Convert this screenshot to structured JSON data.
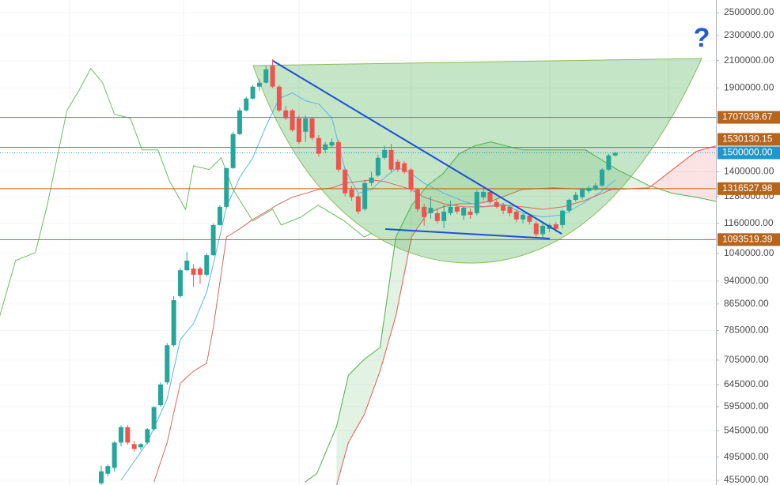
{
  "chart_data": {
    "type": "candlestick",
    "annotation": "?",
    "log_scale": true,
    "grid": true,
    "ylim": [
      455000,
      2500000
    ],
    "yticks": [
      {
        "value": 455000,
        "label": "455000.00"
      },
      {
        "value": 495000,
        "label": "495000.00"
      },
      {
        "value": 545000,
        "label": "545000.00"
      },
      {
        "value": 595000,
        "label": "595000.00"
      },
      {
        "value": 645000,
        "label": "645000.00"
      },
      {
        "value": 705000,
        "label": "705000.00"
      },
      {
        "value": 785000,
        "label": "785000.00"
      },
      {
        "value": 865000,
        "label": "865000.00"
      },
      {
        "value": 940000,
        "label": "940000.00"
      },
      {
        "value": 1040000,
        "label": "1040000.00"
      },
      {
        "value": 1160000,
        "label": "1160000.00"
      },
      {
        "value": 1280000,
        "label": "1280000.00"
      },
      {
        "value": 1400000,
        "label": "1400000.00"
      },
      {
        "value": 1900000,
        "label": "1900000.00"
      },
      {
        "value": 2100000,
        "label": "2100000.00"
      },
      {
        "value": 2300000,
        "label": "2300000.00"
      },
      {
        "value": 2500000,
        "label": "2500000.00"
      }
    ],
    "up_color": "#26a69a",
    "down_color": "#ef5350",
    "ohlc": {
      "open": [
        450000,
        466000,
        476000,
        522000,
        552000,
        519000,
        513000,
        522000,
        548000,
        598000,
        650000,
        744000,
        890000,
        978000,
        984000,
        984000,
        962000,
        1033000,
        1153000,
        1232000,
        1419000,
        1606000,
        1751000,
        1828000,
        1909000,
        1937000,
        2060000,
        1909000,
        1751000,
        1751000,
        1701000,
        1620000,
        1701000,
        1583000,
        1516000,
        1540000,
        1560000,
        1411000,
        1313000,
        1280000,
        1222000,
        1344000,
        1381000,
        1473000,
        1516000,
        1452000,
        1444000,
        1411000,
        1313000,
        1232000,
        1204000,
        1204000,
        1170000,
        1204000,
        1232000,
        1194000,
        1211000,
        1204000,
        1276000,
        1301000,
        1254000,
        1239000,
        1232000,
        1211000,
        1177000,
        1194000,
        1160000,
        1115000,
        1137000,
        1156000,
        1153000,
        1215000,
        1264000,
        1276000,
        1305000,
        1313000,
        1332000,
        1411000,
        1486000
      ],
      "high": [
        480000,
        482000,
        525000,
        556000,
        556000,
        525000,
        521000,
        550000,
        596000,
        650000,
        750000,
        890000,
        985000,
        1045000,
        1000000,
        990000,
        1040000,
        1160000,
        1240000,
        1420000,
        1620000,
        1770000,
        1840000,
        1920000,
        1960000,
        2060000,
        2110000,
        1920000,
        1780000,
        1760000,
        1720000,
        1720000,
        1710000,
        1600000,
        1560000,
        1580000,
        1570000,
        1420000,
        1330000,
        1290000,
        1360000,
        1400000,
        1490000,
        1540000,
        1550000,
        1465000,
        1455000,
        1420000,
        1320000,
        1245000,
        1280000,
        1225000,
        1240000,
        1260000,
        1245000,
        1235000,
        1225000,
        1310000,
        1320000,
        1310000,
        1265000,
        1250000,
        1240000,
        1220000,
        1205000,
        1200000,
        1170000,
        1160000,
        1160000,
        1165000,
        1220000,
        1270000,
        1300000,
        1320000,
        1330000,
        1345000,
        1420000,
        1495000,
        1505000
      ],
      "low": [
        445000,
        462000,
        470000,
        515000,
        518000,
        505000,
        508000,
        519000,
        545000,
        595000,
        645000,
        740000,
        885000,
        975000,
        920000,
        930000,
        955000,
        1030000,
        1150000,
        1225000,
        1415000,
        1600000,
        1745000,
        1820000,
        1880000,
        1930000,
        1900000,
        1740000,
        1690000,
        1620000,
        1550000,
        1560000,
        1570000,
        1480000,
        1500000,
        1530000,
        1400000,
        1280000,
        1260000,
        1200000,
        1215000,
        1330000,
        1375000,
        1465000,
        1400000,
        1400000,
        1390000,
        1300000,
        1210000,
        1150000,
        1180000,
        1160000,
        1140000,
        1195000,
        1200000,
        1175000,
        1180000,
        1195000,
        1265000,
        1245000,
        1225000,
        1200000,
        1190000,
        1165000,
        1160000,
        1155000,
        1100000,
        1100000,
        1125000,
        1125000,
        1140000,
        1205000,
        1255000,
        1265000,
        1295000,
        1305000,
        1325000,
        1405000,
        1480000
      ],
      "close": [
        470000,
        479000,
        522000,
        552000,
        522000,
        510000,
        519000,
        548000,
        594000,
        645000,
        744000,
        877000,
        978000,
        1013000,
        962000,
        962000,
        1033000,
        1153000,
        1232000,
        1419000,
        1606000,
        1751000,
        1828000,
        1909000,
        1937000,
        2034000,
        1909000,
        1751000,
        1701000,
        1629000,
        1560000,
        1701000,
        1583000,
        1495000,
        1547000,
        1560000,
        1411000,
        1294000,
        1276000,
        1211000,
        1344000,
        1371000,
        1473000,
        1516000,
        1411000,
        1411000,
        1399000,
        1313000,
        1222000,
        1187000,
        1228000,
        1170000,
        1211000,
        1232000,
        1211000,
        1228000,
        1197000,
        1301000,
        1301000,
        1254000,
        1232000,
        1215000,
        1204000,
        1177000,
        1197000,
        1167000,
        1115000,
        1150000,
        1153000,
        1137000,
        1215000,
        1264000,
        1287000,
        1313000,
        1320000,
        1332000,
        1411000,
        1486000,
        1500000
      ]
    },
    "lines": [
      {
        "color": "#5ab4e5",
        "x": [
          3,
          7,
          10,
          12,
          14,
          16,
          17,
          19,
          21,
          23,
          25,
          27,
          29,
          31,
          33,
          35,
          37,
          39,
          41,
          43,
          45,
          47,
          49,
          52,
          55,
          58,
          61,
          64,
          67,
          70,
          73,
          76,
          78
        ],
        "values": [
          455000,
          522000,
          612000,
          760000,
          805000,
          903000,
          999000,
          1232000,
          1371000,
          1473000,
          1653000,
          1828000,
          1866000,
          1813000,
          1792000,
          1702000,
          1411000,
          1294000,
          1313000,
          1371000,
          1423000,
          1391000,
          1343000,
          1294000,
          1257000,
          1232000,
          1246000,
          1204000,
          1187000,
          1197000,
          1246000,
          1305000,
          1359000
        ]
      },
      {
        "color": "#d9685e",
        "x": [
          8,
          10,
          12,
          14,
          16,
          17,
          19,
          21,
          23,
          25,
          27,
          29,
          31,
          33,
          35,
          37,
          39,
          41,
          43,
          45,
          47,
          49,
          52,
          55,
          58,
          61,
          64,
          67,
          70,
          73,
          76,
          78
        ],
        "values": [
          452000,
          522000,
          648000,
          677000,
          697000,
          793000,
          1104000,
          1137000,
          1177000,
          1210000,
          1246000,
          1276000,
          1294000,
          1313000,
          1320000,
          1343000,
          1351000,
          1359000,
          1351000,
          1332000,
          1313000,
          1276000,
          1246000,
          1232000,
          1232000,
          1239000,
          1232000,
          1221000,
          1232000,
          1257000,
          1294000,
          1320000
        ]
      },
      {
        "color": "#6abf5e",
        "x": [
          -15.4,
          -13,
          -10,
          -8.2,
          -5.2,
          -3.4,
          -1.6,
          0.2,
          2,
          4.4,
          6.2,
          8.6,
          10.4,
          12.8,
          14,
          16.4,
          18.2,
          20,
          23,
          26,
          27.3,
          30.3,
          32.9,
          36.9,
          39.9,
          41.1
        ],
        "values": [
          828000,
          1013000,
          1043000,
          1239000,
          1751000,
          1882000,
          2040000,
          1937000,
          1726000,
          1702000,
          1516000,
          1516000,
          1351000,
          1221000,
          1431000,
          1411000,
          1473000,
          1313000,
          1170000,
          1221000,
          1153000,
          1187000,
          1239000,
          1170000,
          1104000,
          1120000
        ]
      }
    ],
    "cloud": {
      "x": [
        30.9,
        32.7,
        35.7,
        37.5,
        39.9,
        42.3,
        44.7,
        47.1,
        49.5,
        51.9,
        54.3,
        56.7,
        59.1,
        63.9,
        68.7,
        73.5,
        78.3,
        83.1,
        86.7,
        90.3,
        93.3
      ],
      "span_a": [
        452000,
        466000,
        553000,
        667000,
        707000,
        738000,
        1104000,
        1239000,
        1332000,
        1391000,
        1495000,
        1539000,
        1561000,
        1516000,
        1516000,
        1516000,
        1411000,
        1332000,
        1294000,
        1276000,
        1257000
      ],
      "span_b": [
        null,
        null,
        446000,
        522000,
        578000,
        677000,
        828000,
        1104000,
        1204000,
        1232000,
        1246000,
        1246000,
        1257000,
        1313000,
        1320000,
        1313000,
        1313000,
        1320000,
        1411000,
        1508000,
        1539000
      ],
      "span_a_color": "#4caf50",
      "span_b_color": "#ef5350"
    },
    "levels": [
      1707039.67,
      1530130.15,
      1316527.98,
      1093519.39
    ],
    "level_color": "#b5651d",
    "last_price": {
      "value": 1500000,
      "label": "1500000.00"
    },
    "last_price_color": "#2196c8"
  }
}
